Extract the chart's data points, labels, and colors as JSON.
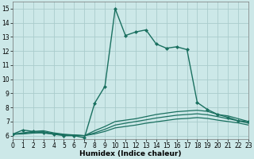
{
  "xlabel": "Humidex (Indice chaleur)",
  "bg_color": "#cce8e8",
  "grid_color": "#aacccc",
  "line_color": "#1a7060",
  "xlim": [
    0,
    23
  ],
  "ylim": [
    5.75,
    15.5
  ],
  "xticks": [
    0,
    1,
    2,
    3,
    4,
    5,
    6,
    7,
    8,
    9,
    10,
    11,
    12,
    13,
    14,
    15,
    16,
    17,
    18,
    19,
    20,
    21,
    22,
    23
  ],
  "yticks": [
    6,
    7,
    8,
    9,
    10,
    11,
    12,
    13,
    14,
    15
  ],
  "curves": [
    {
      "x": [
        0,
        1,
        2,
        3,
        4,
        5,
        6,
        7,
        8,
        9,
        10,
        11,
        12,
        13,
        14,
        15,
        16,
        17,
        18,
        19,
        20,
        21,
        22,
        23
      ],
      "y": [
        6.1,
        6.4,
        6.3,
        6.2,
        6.1,
        6.0,
        6.0,
        5.85,
        8.3,
        9.5,
        15.0,
        13.1,
        13.35,
        13.5,
        12.5,
        12.2,
        12.3,
        12.1,
        8.35,
        7.85,
        7.5,
        7.3,
        7.05,
        7.0
      ],
      "marker": "D",
      "markersize": 2.0,
      "linewidth": 1.0
    },
    {
      "x": [
        0,
        1,
        2,
        3,
        4,
        5,
        6,
        7,
        8,
        9,
        10,
        11,
        12,
        13,
        14,
        15,
        16,
        17,
        18,
        19,
        20,
        21,
        22,
        23
      ],
      "y": [
        6.1,
        6.2,
        6.3,
        6.35,
        6.2,
        6.1,
        6.05,
        6.0,
        6.35,
        6.65,
        7.0,
        7.1,
        7.2,
        7.35,
        7.5,
        7.6,
        7.7,
        7.75,
        7.8,
        7.72,
        7.5,
        7.4,
        7.2,
        7.0
      ],
      "marker": null,
      "markersize": 0,
      "linewidth": 0.9
    },
    {
      "x": [
        0,
        1,
        2,
        3,
        4,
        5,
        6,
        7,
        8,
        9,
        10,
        11,
        12,
        13,
        14,
        15,
        16,
        17,
        18,
        19,
        20,
        21,
        22,
        23
      ],
      "y": [
        6.1,
        6.15,
        6.25,
        6.28,
        6.15,
        6.07,
        6.03,
        6.0,
        6.2,
        6.45,
        6.75,
        6.88,
        7.0,
        7.12,
        7.25,
        7.35,
        7.45,
        7.5,
        7.55,
        7.48,
        7.35,
        7.2,
        7.05,
        6.88
      ],
      "marker": null,
      "markersize": 0,
      "linewidth": 0.9
    },
    {
      "x": [
        0,
        1,
        2,
        3,
        4,
        5,
        6,
        7,
        8,
        9,
        10,
        11,
        12,
        13,
        14,
        15,
        16,
        17,
        18,
        19,
        20,
        21,
        22,
        23
      ],
      "y": [
        6.1,
        6.12,
        6.18,
        6.2,
        6.12,
        6.05,
        6.02,
        6.0,
        6.12,
        6.3,
        6.55,
        6.65,
        6.75,
        6.88,
        6.98,
        7.08,
        7.18,
        7.22,
        7.28,
        7.22,
        7.1,
        7.0,
        6.9,
        6.75
      ],
      "marker": null,
      "markersize": 0,
      "linewidth": 0.9
    }
  ],
  "tick_fontsize": 5.5,
  "axis_fontsize": 6.5,
  "xlabel_fontweight": "bold"
}
